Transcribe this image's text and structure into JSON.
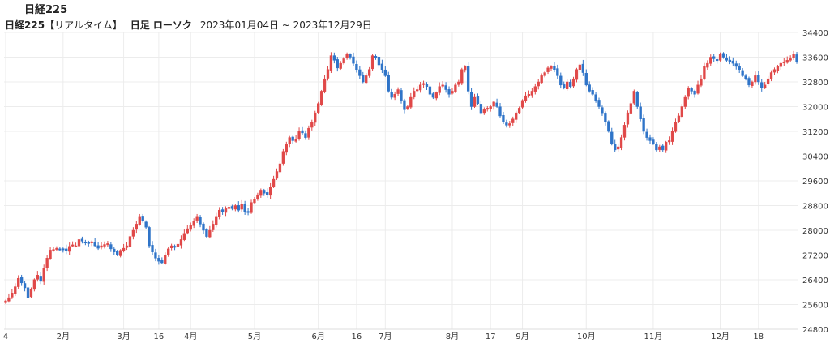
{
  "header": {
    "title": "日経225",
    "subtitle_name": "日経225",
    "subtitle_mode": "【リアルタイム】",
    "subtitle_type": "日足 ローソク",
    "subtitle_range": "2023年01月04日 ~ 2023年12月29日"
  },
  "colors": {
    "up": "#e04848",
    "down": "#2f74c8",
    "grid": "#ececec"
  },
  "chart_data": {
    "type": "candlestick",
    "title": "日経225",
    "ylim": [
      24800,
      34400
    ],
    "yticks": [
      "34400",
      "33600",
      "32800",
      "32000",
      "31200",
      "30400",
      "29600",
      "28800",
      "28000",
      "27200",
      "26400",
      "25600",
      "24800"
    ],
    "xticks": [
      {
        "label": "4",
        "index": 0
      },
      {
        "label": "2月",
        "index": 18
      },
      {
        "label": "3月",
        "index": 37
      },
      {
        "label": "16",
        "index": 48
      },
      {
        "label": "4月",
        "index": 58
      },
      {
        "label": "5月",
        "index": 78
      },
      {
        "label": "6月",
        "index": 98
      },
      {
        "label": "16",
        "index": 110
      },
      {
        "label": "7月",
        "index": 119
      },
      {
        "label": "8月",
        "index": 140
      },
      {
        "label": "17",
        "index": 152
      },
      {
        "label": "9月",
        "index": 162
      },
      {
        "label": "10月",
        "index": 182
      },
      {
        "label": "11月",
        "index": 203
      },
      {
        "label": "12月",
        "index": 224
      },
      {
        "label": "18",
        "index": 236
      }
    ],
    "grid": true,
    "close": [
      25717,
      25820,
      25973,
      26175,
      26447,
      26300,
      26138,
      25822,
      26100,
      26405,
      26550,
      26350,
      26780,
      27100,
      27360,
      27380,
      27420,
      27400,
      27370,
      27330,
      27480,
      27530,
      27500,
      27700,
      27650,
      27610,
      27580,
      27630,
      27500,
      27420,
      27500,
      27540,
      27570,
      27400,
      27300,
      27200,
      27350,
      27420,
      27500,
      27800,
      28000,
      28200,
      28450,
      28300,
      28100,
      27500,
      27300,
      27100,
      27000,
      26950,
      27200,
      27400,
      27500,
      27450,
      27550,
      27700,
      27900,
      28050,
      28150,
      28300,
      28450,
      28200,
      28000,
      27800,
      28000,
      28200,
      28450,
      28650,
      28600,
      28700,
      28750,
      28700,
      28800,
      28650,
      28850,
      28600,
      28600,
      28900,
      29000,
      29150,
      29300,
      29200,
      29150,
      29400,
      29650,
      29900,
      30150,
      30550,
      30800,
      31000,
      30900,
      30950,
      31200,
      31150,
      31000,
      31300,
      31500,
      31800,
      32100,
      32500,
      32900,
      33200,
      33650,
      33500,
      33250,
      33400,
      33550,
      33700,
      33600,
      33400,
      33200,
      33000,
      32800,
      33000,
      33200,
      33650,
      33600,
      33350,
      33200,
      33000,
      32500,
      32300,
      32400,
      32550,
      32200,
      31900,
      32000,
      32300,
      32500,
      32550,
      32700,
      32750,
      32650,
      32400,
      32300,
      32450,
      32650,
      32700,
      32550,
      32400,
      32500,
      32700,
      32800,
      33200,
      33300,
      32500,
      32000,
      32300,
      32100,
      31800,
      31900,
      31950,
      32000,
      32150,
      32000,
      31700,
      31500,
      31400,
      31450,
      31600,
      31800,
      31950,
      32200,
      32350,
      32400,
      32500,
      32650,
      32800,
      33000,
      33100,
      33250,
      33300,
      33200,
      33000,
      32700,
      32600,
      32800,
      32650,
      32900,
      33200,
      33350,
      33100,
      32700,
      32500,
      32400,
      32200,
      32000,
      31800,
      31500,
      31200,
      30800,
      30600,
      30700,
      31000,
      31400,
      31800,
      32100,
      32500,
      32000,
      31600,
      31200,
      31000,
      30900,
      30800,
      30600,
      30700,
      30600,
      30850,
      30900,
      31200,
      31500,
      31700,
      32000,
      32300,
      32600,
      32500,
      32400,
      32700,
      32900,
      33300,
      33400,
      33600,
      33550,
      33500,
      33700,
      33600,
      33500,
      33450,
      33400,
      33300,
      33200,
      33000,
      32900,
      32700,
      32800,
      33000,
      32800,
      32600,
      32700,
      32900,
      33100,
      33200,
      33300,
      33400,
      33450,
      33500,
      33550,
      33700,
      33460
    ]
  }
}
